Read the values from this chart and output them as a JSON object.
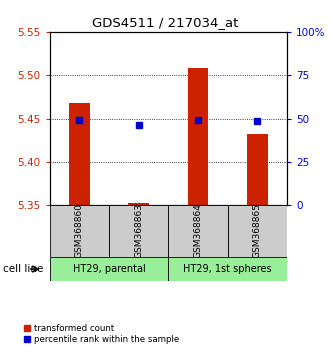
{
  "title": "GDS4511 / 217034_at",
  "samples": [
    "GSM368860",
    "GSM368863",
    "GSM368864",
    "GSM368865"
  ],
  "bar_bottoms": [
    5.35,
    5.35,
    5.35,
    5.35
  ],
  "bar_tops": [
    5.468,
    5.353,
    5.508,
    5.432
  ],
  "blue_y": [
    5.448,
    5.443,
    5.448,
    5.447
  ],
  "ylim_left": [
    5.35,
    5.55
  ],
  "ylim_right": [
    0,
    100
  ],
  "left_ticks": [
    5.35,
    5.4,
    5.45,
    5.5,
    5.55
  ],
  "right_ticks": [
    0,
    25,
    50,
    75,
    100
  ],
  "right_tick_labels": [
    "0",
    "25",
    "50",
    "75",
    "100%"
  ],
  "left_tick_color": "#cc2200",
  "right_tick_color": "#0000cc",
  "bar_color": "#cc2200",
  "blue_color": "#0000cc",
  "sample_box_color": "#cccccc",
  "cell_line_box_color": "#99ee99",
  "cell_lines": [
    "HT29, parental",
    "HT29, 1st spheres"
  ],
  "cell_line_spans": [
    [
      0,
      2
    ],
    [
      2,
      4
    ]
  ],
  "legend_red_label": "transformed count",
  "legend_blue_label": "percentile rank within the sample",
  "cell_line_label": "cell line",
  "bar_width": 0.35
}
